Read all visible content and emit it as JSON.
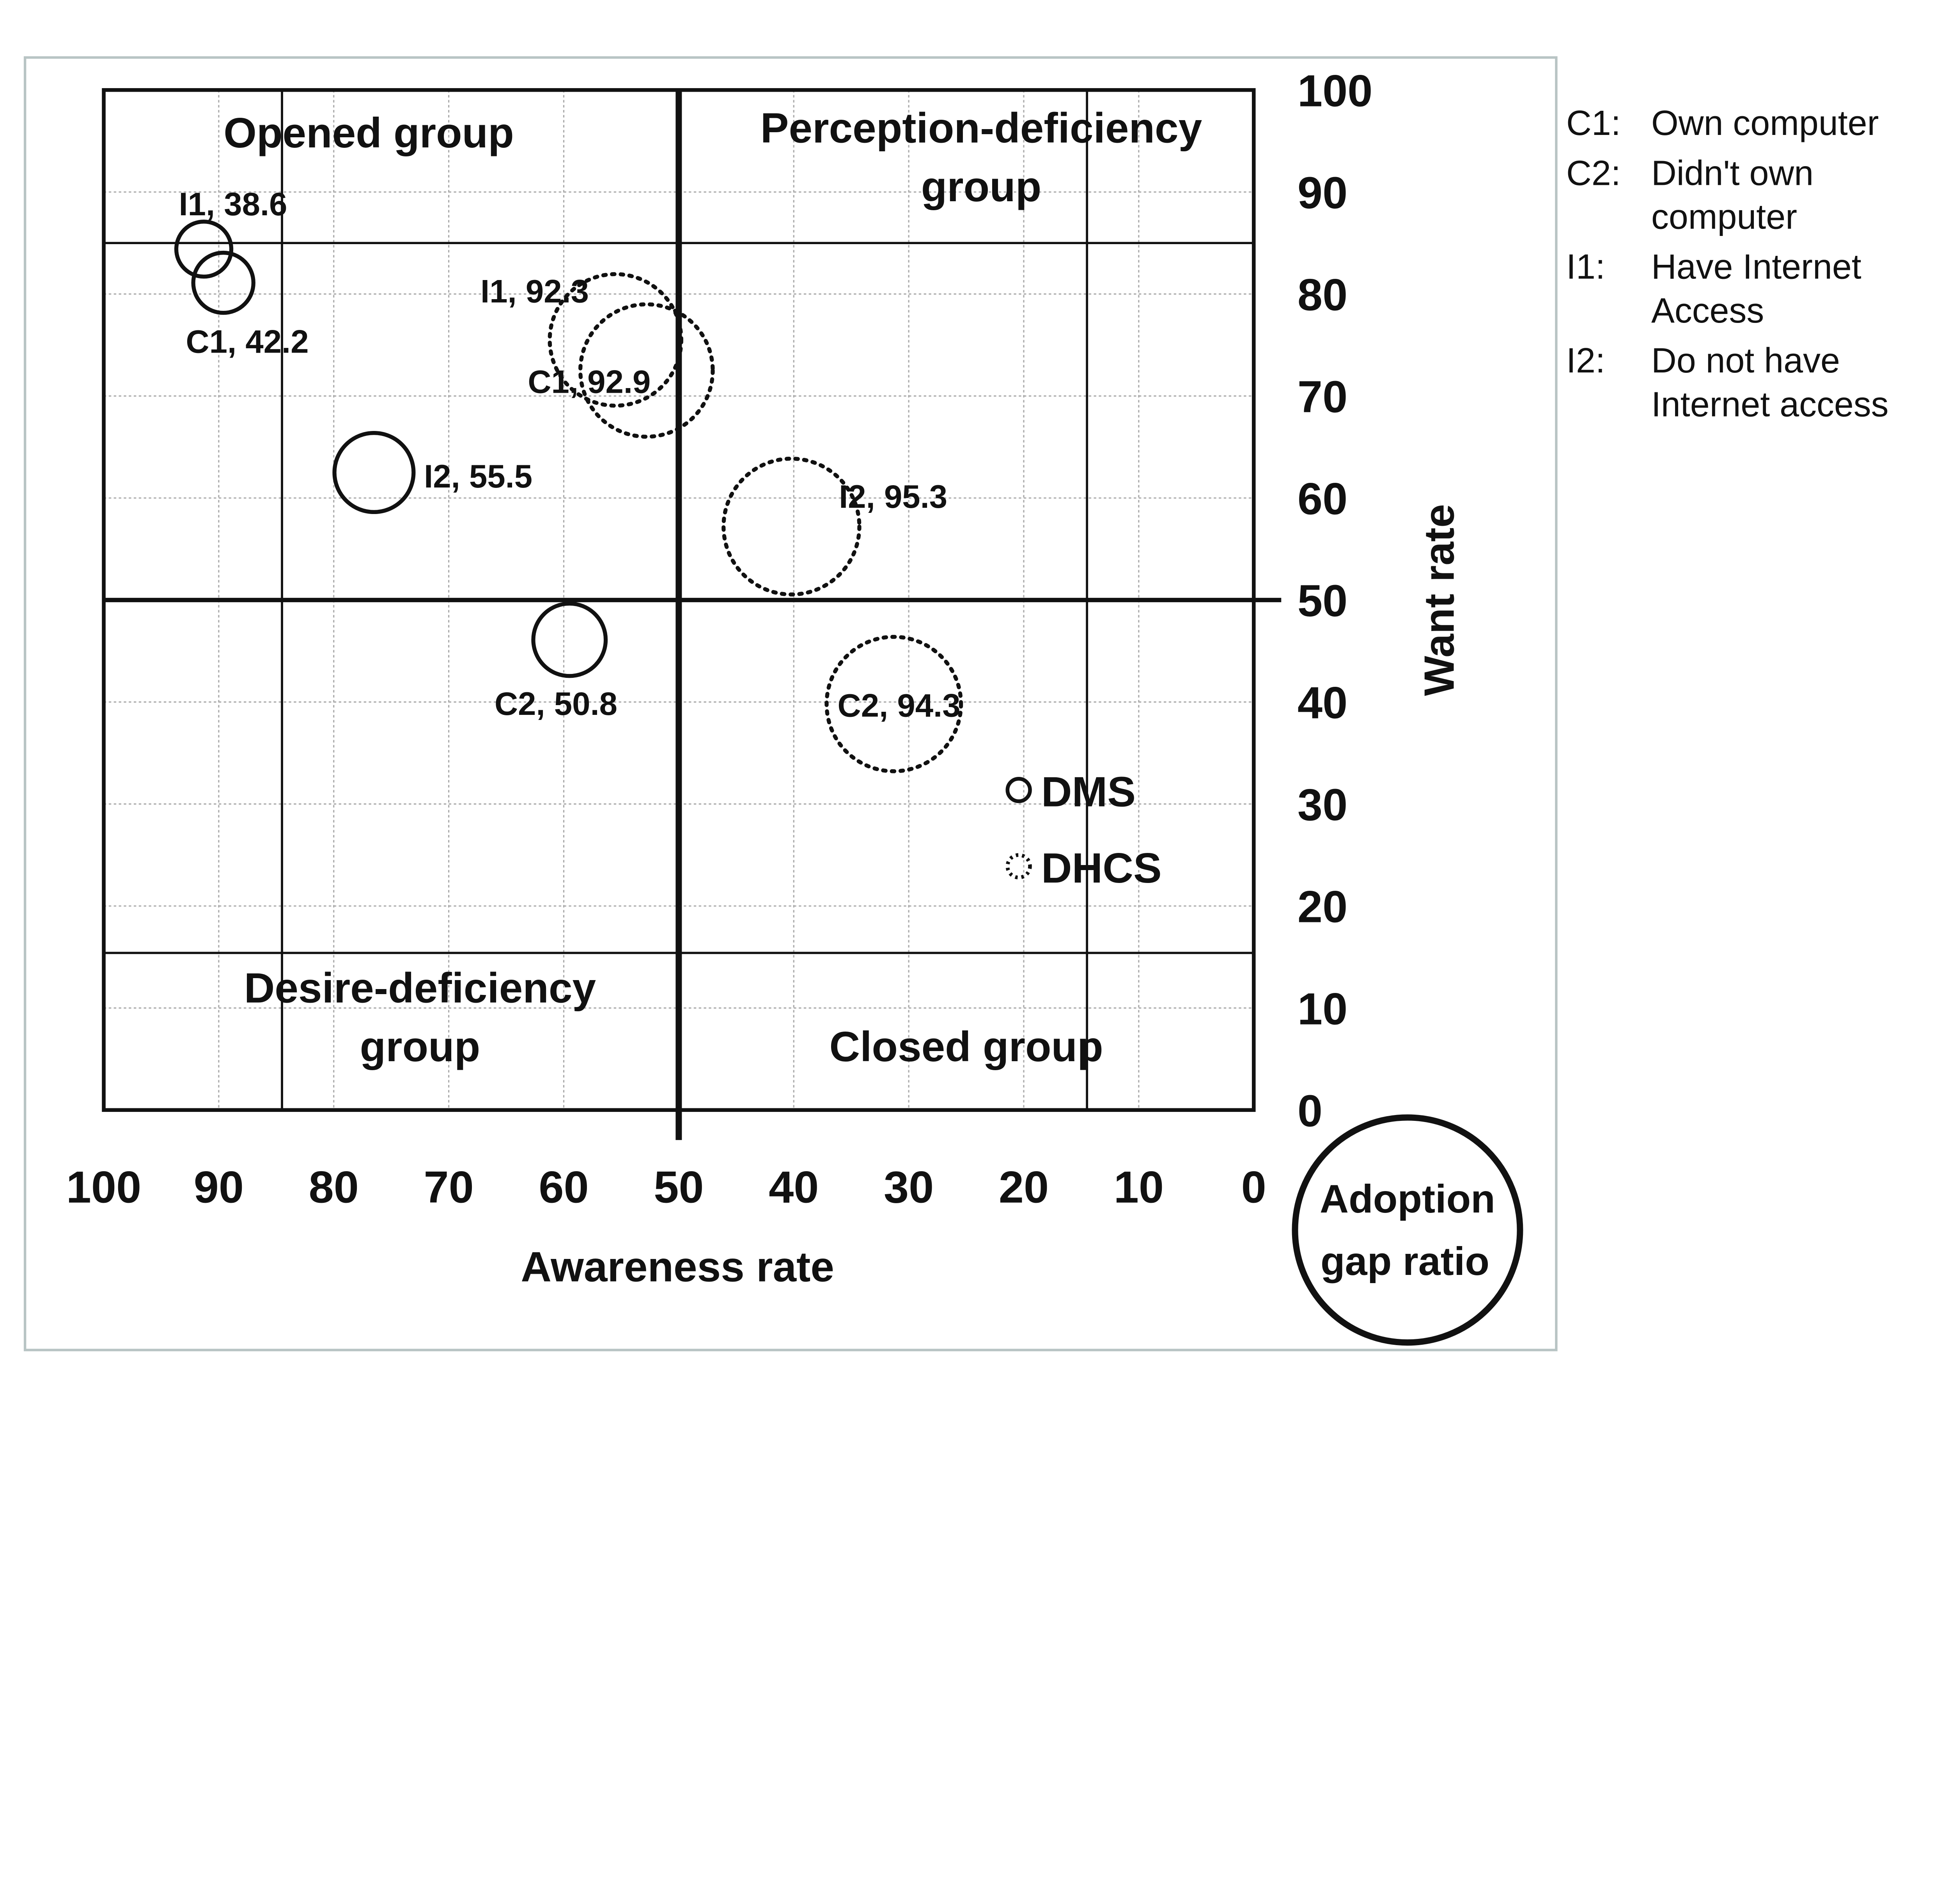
{
  "chart_data": {
    "type": "bubble",
    "xlabel": "Awareness rate",
    "ylabel": "Want rate",
    "xlim": [
      100,
      0
    ],
    "ylim": [
      0,
      100
    ],
    "x_reversed": true,
    "xticks": [
      "100",
      "90",
      "80",
      "70",
      "60",
      "50",
      "40",
      "30",
      "20",
      "10",
      "0"
    ],
    "yticks": [
      "0",
      "10",
      "20",
      "30",
      "40",
      "50",
      "60",
      "70",
      "80",
      "90",
      "100"
    ],
    "grid": true,
    "quadrants": {
      "top_left": "Opened group",
      "top_right_line1": "Perception-deficiency",
      "top_right_line2": "group",
      "bottom_left_line1": "Desire-deficiency",
      "bottom_left_line2": "group",
      "bottom_right": "Closed group"
    },
    "size_legend": {
      "line1": "Adoption",
      "line2": "gap ratio"
    },
    "series": [
      {
        "name": "DMS",
        "style": "solid",
        "points": [
          {
            "label": "I1, 38.6",
            "x": 91.3,
            "y": 84.4,
            "size": 38.6
          },
          {
            "label": "C1, 42.2",
            "x": 89.6,
            "y": 81.1,
            "size": 42.2
          },
          {
            "label": "I2, 55.5",
            "x": 76.5,
            "y": 62.5,
            "size": 55.5
          },
          {
            "label": "C2, 50.8",
            "x": 59.5,
            "y": 46.1,
            "size": 50.8
          }
        ]
      },
      {
        "name": "DHCS",
        "style": "dotted",
        "points": [
          {
            "label": "I1, 92.3",
            "x": 55.5,
            "y": 75.5,
            "size": 92.3
          },
          {
            "label": "C1, 92.9",
            "x": 52.8,
            "y": 72.5,
            "size": 92.9
          },
          {
            "label": "I2, 95.3",
            "x": 40.2,
            "y": 57.2,
            "size": 95.3
          },
          {
            "label": "C2, 94.3",
            "x": 31.3,
            "y": 39.8,
            "size": 94.3
          }
        ]
      }
    ],
    "annotations_legend": [
      {
        "key": "C1:",
        "text1": "Own computer",
        "text2": ""
      },
      {
        "key": "C2:",
        "text1": "Didn't own",
        "text2": "computer"
      },
      {
        "key": "I1:",
        "text1": "Have Internet",
        "text2": "Access"
      },
      {
        "key": "I2:",
        "text1": "Do not have",
        "text2": "Internet access"
      }
    ]
  }
}
